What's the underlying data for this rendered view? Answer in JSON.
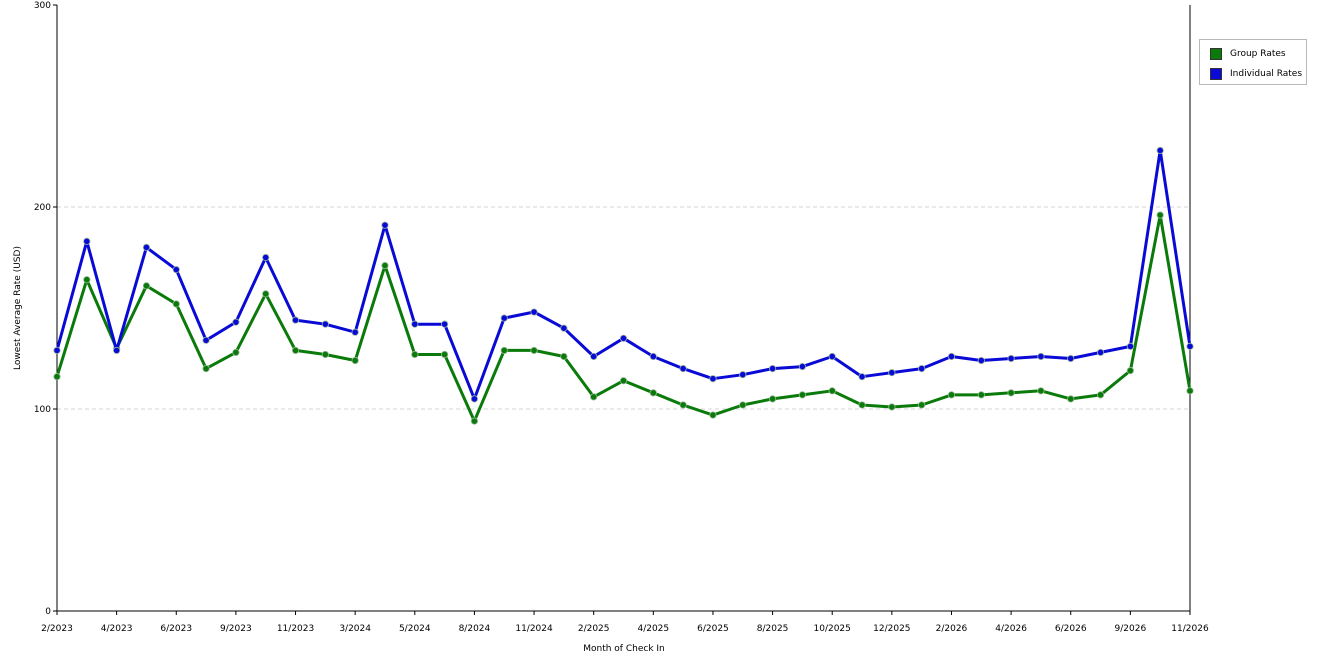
{
  "chart_data": {
    "type": "line",
    "xlabel": "Month of Check In",
    "ylabel": "Lowest Average Rate (USD)",
    "ylim": [
      0,
      300
    ],
    "yticks": [
      "0",
      "100",
      "200",
      "300"
    ],
    "grid": "horizontal dashed",
    "legend_position": "top-right",
    "x_tick_labels": [
      "2/2023",
      "4/2023",
      "6/2023",
      "9/2023",
      "11/2023",
      "3/2024",
      "5/2024",
      "8/2024",
      "11/2024",
      "2/2025",
      "4/2025",
      "6/2025",
      "8/2025",
      "10/2025",
      "12/2025",
      "2/2026",
      "4/2026",
      "6/2026",
      "9/2026",
      "11/2026"
    ],
    "series": [
      {
        "name": "Group Rates",
        "color": "#0a7a0a",
        "values": [
          116,
          164,
          130,
          161,
          152,
          120,
          128,
          157,
          129,
          127,
          124,
          171,
          127,
          127,
          94,
          129,
          129,
          126,
          106,
          114,
          108,
          102,
          97,
          102,
          105,
          107,
          109,
          102,
          101,
          102,
          107,
          107,
          108,
          109,
          105,
          107,
          119,
          196,
          109
        ]
      },
      {
        "name": "Individual Rates",
        "color": "#0a0ad6",
        "values": [
          129,
          183,
          129,
          180,
          169,
          134,
          143,
          175,
          144,
          142,
          138,
          191,
          142,
          142,
          105,
          145,
          148,
          140,
          126,
          135,
          126,
          120,
          115,
          117,
          120,
          121,
          126,
          116,
          118,
          120,
          126,
          124,
          125,
          126,
          125,
          128,
          131,
          228,
          131
        ]
      }
    ]
  }
}
